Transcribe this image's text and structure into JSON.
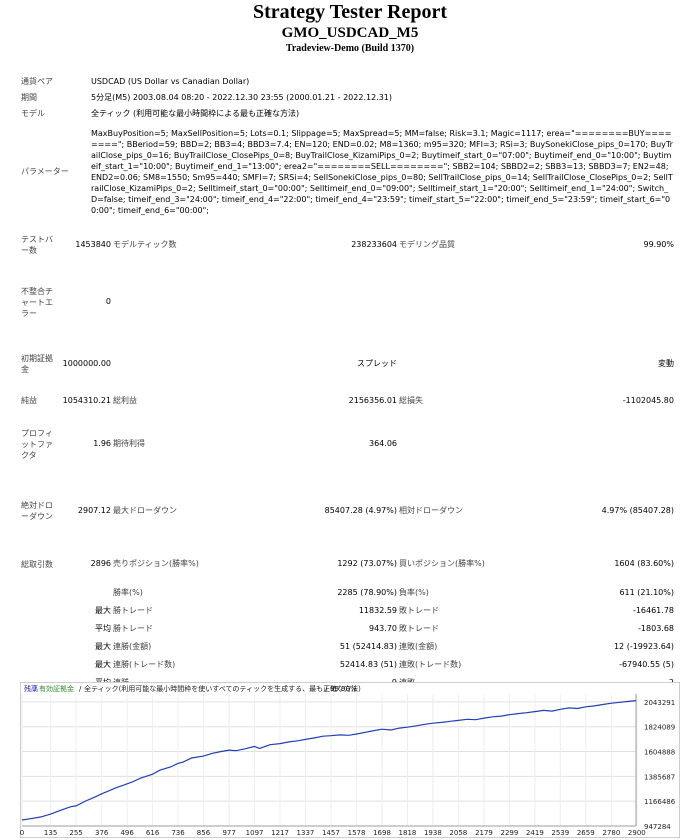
{
  "header": {
    "title": "Strategy Tester Report",
    "symbol_title": "GMO_USDCAD_M5",
    "server": "Tradeview-Demo (Build 1370)"
  },
  "info": {
    "pair_label": "通貨ペア",
    "pair_value": "USDCAD (US Dollar vs Canadian Dollar)",
    "period_label": "期間",
    "period_value": "5分足(M5) 2003.08.04 08:20 - 2022.12.30 23:55 (2000.01.21 - 2022.12.31)",
    "model_label": "モデル",
    "model_value": "全ティック (利用可能な最小時間枠による最も正確な方法)",
    "params_label": "パラメーター",
    "params_value": "MaxBuyPosition=5; MaxSellPosition=5; Lots=0.1; Slippage=5; MaxSpread=5; MM=false; Risk=3.1; Magic=1117; erea=\"========BUY========\"; BBeriod=59; BBD=2; BB3=4; BBD3=7.4; EN=120; END=0.02; M8=1360; m95=320; MFI=3; RSi=3; BuySonekiClose_pips_0=170; BuyTrailClose_pips_0=16; BuyTrailClose_ClosePips_0=8; BuyTrailClose_KizamiPips_0=2; Buytimeif_start_0=\"07:00\"; Buytimeif_end_0=\"10:00\"; Buytimeif_start_1=\"10:00\"; Buytimeif_end_1=\"13:00\"; erea2=\"========SELL========\"; SBB2=104; SBBD2=2; SBB3=13; SBBD3=7; EN2=48; END2=0.06; SM8=1550; Sm95=440; SMFI=7; SRSi=4; SellSonekiClose_pips_0=80; SellTrailClose_pips_0=14; SellTrailClose_ClosePips_0=2; SellTrailClose_KizamiPips_0=2; Selltimeif_start_0=\"00:00\"; Selltimeif_end_0=\"09:00\"; Selltimeif_start_1=\"20:00\"; Selltimeif_end_1=\"24:00\"; Switch_D=false; timeif_end_3=\"24:00\"; timeif_end_4=\"22:00\"; timeif_end_4=\"23:59\"; timeif_start_5=\"22:00\"; timeif_end_5=\"23:59\"; timeif_start_6=\"00:00\"; timeif_end_6=\"00:00\";"
  },
  "stats": {
    "bars_label": "テストバー数",
    "bars_value": "1453840",
    "ticks_label": "モデルティック数",
    "ticks_value": "238233604",
    "quality_label": "モデリング品質",
    "quality_value": "99.90%",
    "mismatch_label": "不整合チャートエラー",
    "mismatch_value": "0",
    "deposit_label": "初期証拠金",
    "deposit_value": "1000000.00",
    "spread_label": "スプレッド",
    "spread_value": "変動",
    "net_label": "純益",
    "net_value": "1054310.21",
    "gross_profit_label": "総利益",
    "gross_profit_value": "2156356.01",
    "gross_loss_label": "総損失",
    "gross_loss_value": "-1102045.80",
    "pf_label": "プロフィットファクタ",
    "pf_value": "1.96",
    "exp_label": "期待利得",
    "exp_value": "364.06",
    "abs_dd_label": "絶対ドローダウン",
    "abs_dd_value": "2907.12",
    "max_dd_label": "最大ドローダウン",
    "max_dd_value": "85407.28 (4.97%)",
    "rel_dd_label": "相対ドローダウン",
    "rel_dd_value": "4.97% (85407.28)",
    "trades_label": "総取引数",
    "trades_value": "2896",
    "short_label": "売りポジション(勝率%)",
    "short_value": "1292 (73.07%)",
    "long_label": "買いポジション(勝率%)",
    "long_value": "1604 (83.60%)",
    "win_label": "勝率(%)",
    "win_value": "2285 (78.90%)",
    "loss_label": "負率(%)",
    "loss_value": "611 (21.10%)",
    "max_word": "最大",
    "avg_word": "平均",
    "max_win_label": "勝トレード",
    "max_win_value": "11832.59",
    "max_loss_label": "敗トレード",
    "max_loss_value": "-16461.78",
    "avg_win_label": "勝トレード",
    "avg_win_value": "943.70",
    "avg_loss_label": "敗トレード",
    "avg_loss_value": "-1803.68",
    "cons_win_amt_label": "連勝(金額)",
    "cons_win_amt_value": "51 (52414.83)",
    "cons_loss_amt_label": "連敗(金額)",
    "cons_loss_amt_value": "12 (-19923.64)",
    "cons_win_cnt_label": "連勝(トレード数)",
    "cons_win_cnt_value": "52414.83 (51)",
    "cons_loss_cnt_label": "連敗(トレード数)",
    "cons_loss_cnt_value": "-67940.55 (5)",
    "avg_cons_win_label": "連勝",
    "avg_cons_win_value": "9",
    "avg_cons_loss_label": "連敗",
    "avg_cons_loss_value": "2"
  },
  "chart_data": {
    "type": "line",
    "legend_balance": "残高",
    "legend_equity": "有効証拠金",
    "legend_note": "全ティック(利用可能な最小時間枠を使いすべてのティックを生成する、最も正確な方法)",
    "legend_quality": "99.90%",
    "ylim": [
      947284,
      2113000
    ],
    "xlim": [
      0,
      2896
    ],
    "y_ticks": [
      "2043291",
      "1824089",
      "1604888",
      "1385687",
      "1166486",
      "947284"
    ],
    "y_tick_values": [
      2043291,
      1824089,
      1604888,
      1385687,
      1166486,
      947284
    ],
    "x_ticks": [
      "0",
      "135",
      "255",
      "376",
      "496",
      "616",
      "736",
      "856",
      "977",
      "1097",
      "1217",
      "1337",
      "1457",
      "1578",
      "1698",
      "1818",
      "1938",
      "2058",
      "2179",
      "2299",
      "2419",
      "2539",
      "2659",
      "2780",
      "2900"
    ],
    "series": [
      {
        "x": [
          0,
          40,
          90,
          135,
          180,
          230,
          255,
          300,
          340,
          376,
          400,
          440,
          496,
          520,
          560,
          600,
          616,
          650,
          700,
          736,
          760,
          800,
          856,
          900,
          940,
          977,
          1010,
          1050,
          1097,
          1120,
          1170,
          1217,
          1260,
          1300,
          1337,
          1380,
          1420,
          1457,
          1500,
          1540,
          1578,
          1620,
          1660,
          1698,
          1740,
          1780,
          1818,
          1860,
          1900,
          1938,
          1980,
          2020,
          2058,
          2100,
          2140,
          2179,
          2220,
          2260,
          2299,
          2340,
          2380,
          2419,
          2460,
          2500,
          2539,
          2580,
          2620,
          2659,
          2700,
          2740,
          2780,
          2820,
          2860,
          2896
        ],
        "y": [
          1000000,
          1012000,
          1028000,
          1052000,
          1085000,
          1118000,
          1125000,
          1168000,
          1200000,
          1232000,
          1250000,
          1282000,
          1320000,
          1336000,
          1370000,
          1395000,
          1405000,
          1440000,
          1468000,
          1500000,
          1512000,
          1548000,
          1565000,
          1590000,
          1605000,
          1618000,
          1612000,
          1628000,
          1650000,
          1632000,
          1665000,
          1675000,
          1690000,
          1700000,
          1712000,
          1725000,
          1740000,
          1745000,
          1752000,
          1748000,
          1760000,
          1775000,
          1790000,
          1802000,
          1795000,
          1812000,
          1820000,
          1832000,
          1845000,
          1855000,
          1862000,
          1872000,
          1880000,
          1890000,
          1886000,
          1900000,
          1912000,
          1918000,
          1930000,
          1940000,
          1948000,
          1958000,
          1968000,
          1962000,
          1978000,
          1990000,
          1985000,
          2000000,
          2008000,
          2020000,
          2032000,
          2040000,
          2048000,
          2054310
        ]
      }
    ]
  }
}
